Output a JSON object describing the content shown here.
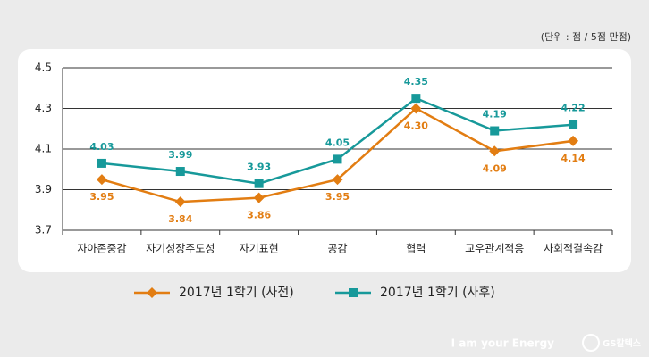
{
  "chart_data": {
    "type": "line",
    "unit_note": "(단위 : 점 / 5점 만점)",
    "categories": [
      "자아존중감",
      "자기성장주도성",
      "자기표현",
      "공감",
      "협력",
      "교우관계적응",
      "사회적결속감"
    ],
    "series": [
      {
        "name": "2017년 1학기 (사전)",
        "color": "#e27d12",
        "marker": "diamond",
        "values": [
          3.95,
          3.84,
          3.86,
          3.95,
          4.3,
          4.09,
          4.14
        ],
        "value_labels": [
          "3.95",
          "3.84",
          "3.86",
          "3.95",
          "4.30",
          "4.09",
          "4.14"
        ]
      },
      {
        "name": "2017년 1학기 (사후)",
        "color": "#17999a",
        "marker": "square",
        "values": [
          4.03,
          3.99,
          3.93,
          4.05,
          4.35,
          4.19,
          4.22
        ],
        "value_labels": [
          "4.03",
          "3.99",
          "3.93",
          "4.05",
          "4.35",
          "4.19",
          "4.22"
        ]
      }
    ],
    "ylim": [
      3.7,
      4.5
    ],
    "yticks": [
      3.7,
      3.9,
      4.1,
      4.3,
      4.5
    ],
    "grid": true,
    "footer": "I am your Energy",
    "brand": "GS칼텍스"
  }
}
